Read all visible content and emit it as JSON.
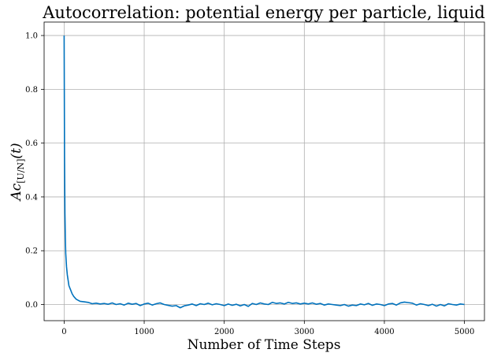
{
  "chart_data": {
    "type": "line",
    "title": "Autocorrelation: potential energy per particle, liquid",
    "xlabel": "Number of Time Steps",
    "ylabel": {
      "main": "Ac",
      "subscript": "[U/N]",
      "suffix": "(t)"
    },
    "xlim": [
      -250,
      5250
    ],
    "ylim": [
      -0.06,
      1.05
    ],
    "xticks": [
      0,
      1000,
      2000,
      3000,
      4000,
      5000
    ],
    "yticks": [
      0.0,
      0.2,
      0.4,
      0.6,
      0.8,
      1.0
    ],
    "xtick_labels": [
      "0",
      "1000",
      "2000",
      "3000",
      "4000",
      "5000"
    ],
    "ytick_labels": [
      "0.0",
      "0.2",
      "0.4",
      "0.6",
      "0.8",
      "1.0"
    ],
    "grid": true,
    "series": [
      {
        "color": "#0072bd",
        "x": [
          0,
          5,
          10,
          15,
          20,
          30,
          40,
          50,
          60,
          80,
          100,
          120,
          150,
          180,
          200,
          250,
          300,
          350,
          400,
          450,
          500,
          550,
          600,
          650,
          700,
          750,
          800,
          850,
          900,
          950,
          1000,
          1050,
          1100,
          1150,
          1200,
          1250,
          1300,
          1350,
          1400,
          1450,
          1500,
          1550,
          1600,
          1650,
          1700,
          1750,
          1800,
          1850,
          1900,
          1950,
          2000,
          2050,
          2100,
          2150,
          2200,
          2250,
          2300,
          2350,
          2400,
          2450,
          2500,
          2550,
          2600,
          2650,
          2700,
          2750,
          2800,
          2850,
          2900,
          2950,
          3000,
          3050,
          3100,
          3150,
          3200,
          3250,
          3300,
          3350,
          3400,
          3450,
          3500,
          3550,
          3600,
          3650,
          3700,
          3750,
          3800,
          3850,
          3900,
          3950,
          4000,
          4050,
          4100,
          4150,
          4200,
          4250,
          4300,
          4350,
          4400,
          4450,
          4500,
          4550,
          4600,
          4650,
          4700,
          4750,
          4800,
          4850,
          4900,
          4950,
          5000
        ],
        "y": [
          1.0,
          0.55,
          0.34,
          0.25,
          0.19,
          0.14,
          0.11,
          0.09,
          0.07,
          0.055,
          0.04,
          0.03,
          0.02,
          0.015,
          0.012,
          0.01,
          0.008,
          0.003,
          0.005,
          0.002,
          0.004,
          0.001,
          0.006,
          0.0,
          0.003,
          -0.002,
          0.005,
          0.001,
          0.004,
          -0.004,
          0.002,
          0.005,
          -0.002,
          0.003,
          0.006,
          0.0,
          -0.003,
          -0.006,
          -0.004,
          -0.012,
          -0.005,
          -0.002,
          0.002,
          -0.004,
          0.003,
          0.0,
          0.005,
          -0.001,
          0.003,
          0.0,
          -0.004,
          0.002,
          -0.003,
          0.001,
          -0.005,
          0.0,
          -0.007,
          0.004,
          0.0,
          0.006,
          0.002,
          0.0,
          0.008,
          0.004,
          0.006,
          0.002,
          0.008,
          0.004,
          0.006,
          0.002,
          0.005,
          0.002,
          0.006,
          0.001,
          0.004,
          -0.002,
          0.002,
          0.0,
          -0.002,
          -0.004,
          0.0,
          -0.006,
          -0.002,
          -0.004,
          0.002,
          -0.001,
          0.004,
          -0.003,
          0.002,
          0.0,
          -0.004,
          0.002,
          0.004,
          -0.002,
          0.006,
          0.009,
          0.007,
          0.005,
          -0.002,
          0.003,
          0.0,
          -0.004,
          0.001,
          -0.006,
          0.0,
          -0.005,
          0.003,
          0.0,
          -0.002,
          0.002,
          0.0
        ]
      }
    ]
  }
}
